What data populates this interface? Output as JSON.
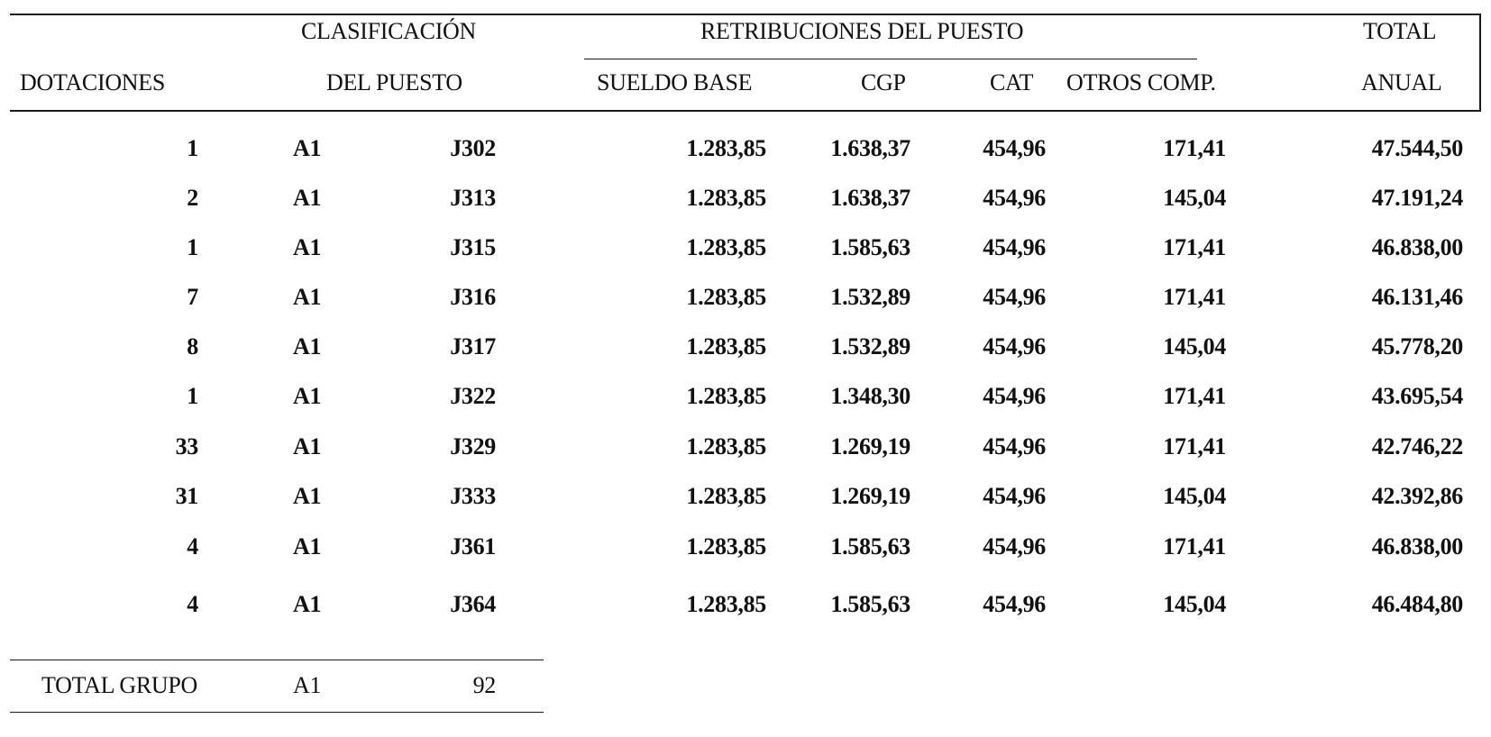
{
  "headers": {
    "clasificacion_line1": "CLASIFICACIÓN",
    "clasificacion_line2": "DEL PUESTO",
    "dotaciones": "DOTACIONES",
    "retribuciones": "RETRIBUCIONES DEL PUESTO",
    "sueldo_base": "SUELDO BASE",
    "cgp": "CGP",
    "cat": "CAT",
    "otros_comp": "OTROS COMP.",
    "total_line1": "TOTAL",
    "total_line2": "ANUAL"
  },
  "rows": [
    {
      "dotaciones": "1",
      "grupo": "A1",
      "codigo": "J302",
      "sueldo_base": "1.283,85",
      "cgp": "1.638,37",
      "cat": "454,96",
      "otros_comp": "171,41",
      "total_anual": "47.544,50"
    },
    {
      "dotaciones": "2",
      "grupo": "A1",
      "codigo": "J313",
      "sueldo_base": "1.283,85",
      "cgp": "1.638,37",
      "cat": "454,96",
      "otros_comp": "145,04",
      "total_anual": "47.191,24"
    },
    {
      "dotaciones": "1",
      "grupo": "A1",
      "codigo": "J315",
      "sueldo_base": "1.283,85",
      "cgp": "1.585,63",
      "cat": "454,96",
      "otros_comp": "171,41",
      "total_anual": "46.838,00"
    },
    {
      "dotaciones": "7",
      "grupo": "A1",
      "codigo": "J316",
      "sueldo_base": "1.283,85",
      "cgp": "1.532,89",
      "cat": "454,96",
      "otros_comp": "171,41",
      "total_anual": "46.131,46"
    },
    {
      "dotaciones": "8",
      "grupo": "A1",
      "codigo": "J317",
      "sueldo_base": "1.283,85",
      "cgp": "1.532,89",
      "cat": "454,96",
      "otros_comp": "145,04",
      "total_anual": "45.778,20"
    },
    {
      "dotaciones": "1",
      "grupo": "A1",
      "codigo": "J322",
      "sueldo_base": "1.283,85",
      "cgp": "1.348,30",
      "cat": "454,96",
      "otros_comp": "171,41",
      "total_anual": "43.695,54"
    },
    {
      "dotaciones": "33",
      "grupo": "A1",
      "codigo": "J329",
      "sueldo_base": "1.283,85",
      "cgp": "1.269,19",
      "cat": "454,96",
      "otros_comp": "171,41",
      "total_anual": "42.746,22"
    },
    {
      "dotaciones": "31",
      "grupo": "A1",
      "codigo": "J333",
      "sueldo_base": "1.283,85",
      "cgp": "1.269,19",
      "cat": "454,96",
      "otros_comp": "145,04",
      "total_anual": "42.392,86"
    },
    {
      "dotaciones": "4",
      "grupo": "A1",
      "codigo": "J361",
      "sueldo_base": "1.283,85",
      "cgp": "1.585,63",
      "cat": "454,96",
      "otros_comp": "171,41",
      "total_anual": "46.838,00"
    },
    {
      "dotaciones": "4",
      "grupo": "A1",
      "codigo": "J364",
      "sueldo_base": "1.283,85",
      "cgp": "1.585,63",
      "cat": "454,96",
      "otros_comp": "145,04",
      "total_anual": "46.484,80"
    }
  ],
  "total": {
    "label": "TOTAL GRUPO",
    "grupo": "A1",
    "value": "92"
  }
}
